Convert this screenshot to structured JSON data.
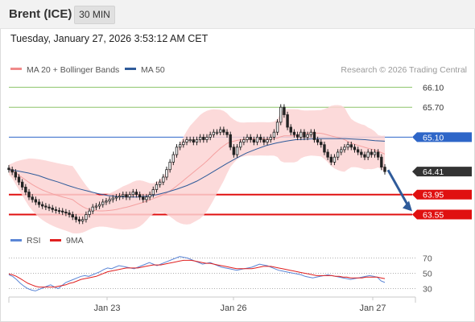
{
  "header": {
    "instrument": "Brent (ICE)",
    "timeframe": "30 MIN"
  },
  "timestamp": "Tuesday, January 27, 2026 3:53:12 AM CET",
  "legend": {
    "items": [
      {
        "label": "MA 20 + Bollinger Bands",
        "color": "#f08a8a"
      },
      {
        "label": "MA 50",
        "color": "#2f5b9a"
      }
    ],
    "credit": "Research © 2026 Trading Central"
  },
  "rsi_legend": {
    "items": [
      {
        "label": "RSI",
        "color": "#5b86d6"
      },
      {
        "label": "9MA",
        "color": "#e02020"
      }
    ]
  },
  "colors": {
    "resistance": "#8dc46a",
    "pivot": "#2e66c8",
    "support": "#e01010",
    "last": "#333333",
    "arrow": "#2f5b9a",
    "band": "#fbd4d4"
  },
  "chart_data": [
    {
      "type": "candlestick",
      "title": "Brent (ICE)",
      "interval": "30 MIN",
      "xlabel": "",
      "ylabel": "",
      "x_ticks": [
        "Jan 23",
        "Jan 26",
        "Jan 27"
      ],
      "y_range": [
        63.3,
        66.3
      ],
      "levels": [
        {
          "value": 66.1,
          "label": "66.10",
          "kind": "resistance"
        },
        {
          "value": 65.7,
          "label": "65.70",
          "kind": "resistance"
        },
        {
          "value": 65.1,
          "label": "65.10",
          "kind": "pivot"
        },
        {
          "value": 64.41,
          "label": "64.41",
          "kind": "last"
        },
        {
          "value": 63.95,
          "label": "63.95",
          "kind": "support"
        },
        {
          "value": 63.55,
          "label": "63.55",
          "kind": "support"
        }
      ],
      "close_series_approx": [
        64.45,
        64.4,
        64.3,
        64.2,
        64.1,
        64.0,
        63.9,
        63.85,
        63.8,
        63.75,
        63.72,
        63.7,
        63.68,
        63.65,
        63.63,
        63.62,
        63.6,
        63.58,
        63.55,
        63.5,
        63.45,
        63.42,
        63.45,
        63.55,
        63.62,
        63.7,
        63.72,
        63.75,
        63.8,
        63.82,
        63.85,
        63.88,
        63.9,
        63.92,
        63.95,
        63.9,
        63.95,
        64.0,
        63.95,
        63.9,
        63.85,
        63.9,
        63.95,
        64.05,
        64.15,
        64.2,
        64.3,
        64.45,
        64.6,
        64.75,
        64.9,
        64.95,
        65.0,
        65.05,
        65.05,
        65.0,
        65.05,
        65.1,
        65.05,
        65.1,
        65.15,
        65.2,
        65.2,
        65.25,
        65.2,
        65.15,
        64.9,
        64.75,
        64.9,
        65.0,
        65.05,
        65.1,
        65.05,
        65.0,
        65.1,
        65.05,
        65.0,
        65.05,
        65.1,
        65.2,
        65.4,
        65.7,
        65.55,
        65.3,
        65.2,
        65.15,
        65.1,
        65.2,
        65.1,
        65.15,
        65.2,
        65.05,
        65.0,
        64.95,
        64.8,
        64.7,
        64.6,
        64.7,
        64.8,
        64.85,
        64.9,
        64.95,
        64.9,
        64.85,
        64.8,
        64.75,
        64.7,
        64.8,
        64.75,
        64.8,
        64.7,
        64.5,
        64.41
      ],
      "ma50_approx": [
        64.45,
        64.42,
        64.38,
        64.33,
        64.26,
        64.2,
        64.13,
        64.07,
        64.02,
        63.97,
        63.93,
        63.91,
        63.9,
        63.9,
        63.92,
        63.95,
        64.0,
        64.06,
        64.13,
        64.22,
        64.33,
        64.45,
        64.57,
        64.68,
        64.78,
        64.86,
        64.93,
        64.98,
        65.02,
        65.05,
        65.06,
        65.07,
        65.07,
        65.07,
        65.07,
        65.06,
        65.05,
        65.03,
        65.02
      ],
      "prediction": {
        "from": 64.41,
        "to": 63.55,
        "direction": "down"
      }
    },
    {
      "type": "line",
      "title": "RSI",
      "y_ticks": [
        70,
        50,
        30
      ],
      "y_range": [
        20,
        80
      ],
      "series": [
        {
          "name": "RSI",
          "values": [
            48,
            46,
            42,
            37,
            33,
            30,
            28,
            27,
            29,
            31,
            33,
            35,
            32,
            30,
            34,
            38,
            40,
            42,
            44,
            46,
            47,
            46,
            48,
            50,
            52,
            55,
            57,
            56,
            58,
            60,
            59,
            58,
            57,
            56,
            58,
            60,
            62,
            64,
            62,
            60,
            62,
            64,
            66,
            68,
            70,
            72,
            71,
            70,
            68,
            66,
            64,
            62,
            63,
            64,
            62,
            60,
            58,
            57,
            56,
            55,
            54,
            55,
            56,
            57,
            58,
            60,
            62,
            61,
            60,
            58,
            56,
            54,
            53,
            52,
            51,
            50,
            49,
            48,
            46,
            45,
            44,
            45,
            46,
            47,
            48,
            47,
            46,
            45,
            44,
            43,
            42,
            43,
            44,
            45,
            46,
            47,
            46,
            45,
            40,
            38
          ]
        },
        {
          "name": "9MA",
          "values": [
            49,
            48,
            46,
            43,
            40,
            37,
            35,
            33,
            32,
            32,
            32,
            32,
            32,
            33,
            34,
            35,
            37,
            38,
            40,
            42,
            43,
            44,
            45,
            46,
            48,
            50,
            52,
            53,
            54,
            55,
            56,
            57,
            57,
            57,
            57,
            58,
            59,
            60,
            61,
            61,
            61,
            62,
            63,
            64,
            65,
            66,
            67,
            67,
            67,
            66,
            65,
            64,
            63,
            63,
            62,
            61,
            60,
            59,
            58,
            57,
            56,
            56,
            56,
            56,
            56,
            57,
            58,
            59,
            59,
            59,
            58,
            57,
            56,
            55,
            54,
            53,
            52,
            51,
            50,
            49,
            48,
            47,
            47,
            47,
            47,
            47,
            46,
            46,
            45,
            45,
            44,
            44,
            44,
            44,
            45,
            45,
            45,
            45,
            44,
            43
          ]
        }
      ]
    }
  ]
}
